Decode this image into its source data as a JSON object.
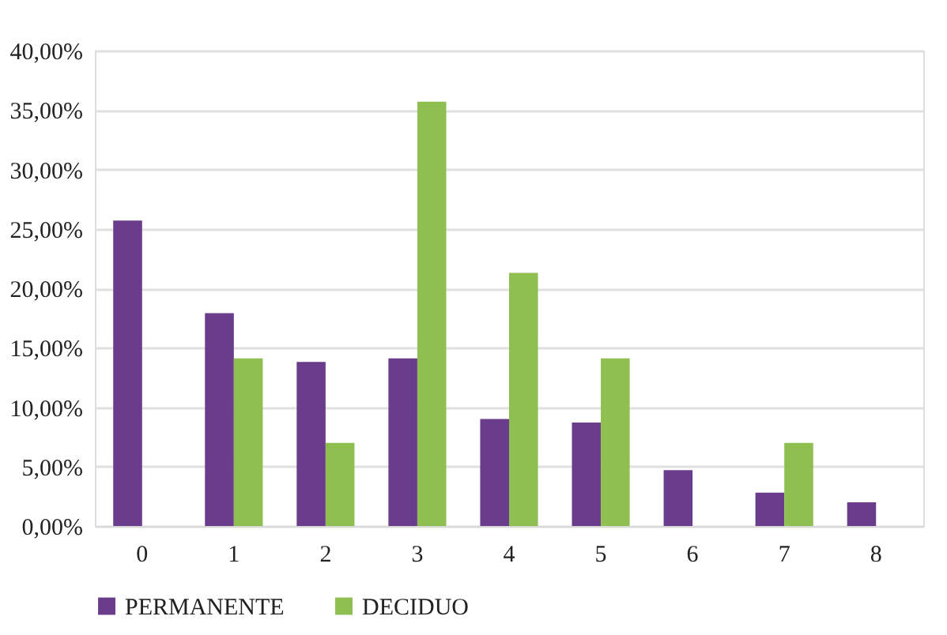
{
  "chart_data": {
    "type": "bar",
    "categories": [
      "0",
      "1",
      "2",
      "3",
      "4",
      "5",
      "6",
      "7",
      "8"
    ],
    "series": [
      {
        "name": "PERMANENTE",
        "color": "#6a3d8c",
        "values": [
          25.7,
          17.9,
          13.8,
          14.1,
          9.0,
          8.7,
          4.7,
          2.8,
          2.0
        ]
      },
      {
        "name": "DECIDUO",
        "color": "#8fbf50",
        "values": [
          null,
          14.1,
          7.0,
          35.7,
          21.3,
          14.1,
          null,
          7.0,
          null
        ]
      }
    ],
    "ylim": [
      0,
      40
    ],
    "yticks": [
      {
        "value": 0,
        "label": "0,00%"
      },
      {
        "value": 5,
        "label": "5,00%"
      },
      {
        "value": 10,
        "label": "10,00%"
      },
      {
        "value": 15,
        "label": "15,00%"
      },
      {
        "value": 20,
        "label": "20,00%"
      },
      {
        "value": 25,
        "label": "25,00%"
      },
      {
        "value": 30,
        "label": "30,00%"
      },
      {
        "value": 35,
        "label": "35,00%"
      },
      {
        "value": 40,
        "label": "40,00%"
      }
    ],
    "grid": "y",
    "legend": "bottom"
  }
}
